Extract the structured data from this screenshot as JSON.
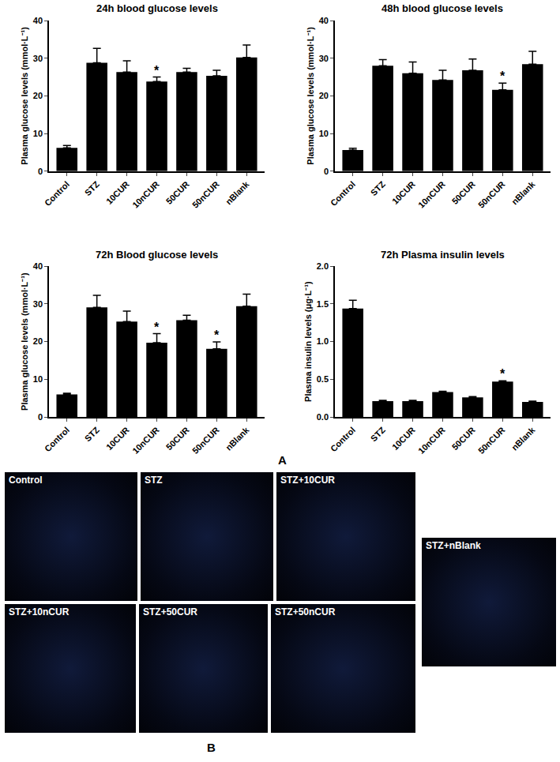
{
  "chart_data": [
    {
      "type": "bar",
      "title": "24h blood glucose levels",
      "y_label": "Plasma glucose levels (mmol·L⁻¹)",
      "categories": [
        "Control",
        "STZ",
        "10CUR",
        "10nCUR",
        "50CUR",
        "50nCUR",
        "nBlank"
      ],
      "values": [
        6.2,
        28.8,
        26.3,
        23.8,
        26.3,
        25.3,
        30.2
      ],
      "errors": [
        0.6,
        3.8,
        3.0,
        1.2,
        1.0,
        1.5,
        3.3
      ],
      "color": "#000000",
      "ylim": [
        0,
        40
      ],
      "yticks": [
        0,
        10,
        20,
        30,
        40
      ],
      "grid": false,
      "annotations": [
        {
          "x": "10nCUR",
          "text": "*"
        }
      ]
    },
    {
      "type": "bar",
      "title": "48h blood glucose levels",
      "y_label": "Plasma glucose levels (mmol·L⁻¹)",
      "categories": [
        "Control",
        "STZ",
        "10CUR",
        "10nCUR",
        "50CUR",
        "50nCUR",
        "nBlank"
      ],
      "values": [
        5.6,
        28.0,
        26.0,
        24.2,
        26.8,
        21.6,
        28.4
      ],
      "errors": [
        0.5,
        1.6,
        3.0,
        2.6,
        3.0,
        1.8,
        3.4
      ],
      "color": "#000000",
      "ylim": [
        0,
        40
      ],
      "yticks": [
        0,
        10,
        20,
        30,
        40
      ],
      "grid": false,
      "annotations": [
        {
          "x": "50nCUR",
          "text": "*"
        }
      ]
    },
    {
      "type": "bar",
      "title": "72h Blood glucose levels",
      "y_label": "Plasma glucose levels (mmol·L⁻¹)",
      "categories": [
        "Control",
        "STZ",
        "10CUR",
        "10nCUR",
        "50CUR",
        "50nCUR",
        "nBlank"
      ],
      "values": [
        6.0,
        29.1,
        25.3,
        19.7,
        25.7,
        18.1,
        29.4
      ],
      "errors": [
        0.3,
        3.2,
        2.8,
        2.4,
        1.3,
        1.8,
        3.2
      ],
      "color": "#000000",
      "ylim": [
        0,
        40
      ],
      "yticks": [
        0,
        10,
        20,
        30,
        40
      ],
      "grid": false,
      "annotations": [
        {
          "x": "10nCUR",
          "text": "*"
        },
        {
          "x": "50nCUR",
          "text": "*"
        }
      ]
    },
    {
      "type": "bar",
      "title": "72h Plasma insulin levels",
      "y_label": "Plasma insulin levels (μg·L⁻¹)",
      "categories": [
        "Control",
        "STZ",
        "10CUR",
        "10nCUR",
        "50CUR",
        "50nCUR",
        "nBlank"
      ],
      "values": [
        1.44,
        0.21,
        0.21,
        0.33,
        0.26,
        0.47,
        0.2
      ],
      "errors": [
        0.11,
        0.01,
        0.01,
        0.01,
        0.01,
        0.01,
        0.01
      ],
      "color": "#000000",
      "ylim": [
        0,
        2
      ],
      "yticks": [
        {
          "value": 0,
          "label": "0.0"
        },
        {
          "value": 0.5,
          "label": "0.5"
        },
        {
          "value": 1,
          "label": "1.0"
        },
        {
          "value": 1.5,
          "label": "1.5"
        },
        {
          "value": 2,
          "label": "2.0"
        }
      ],
      "grid": false,
      "annotations": [
        {
          "x": "50nCUR",
          "text": "*"
        }
      ]
    }
  ],
  "figure": {
    "panel_a_label": "A",
    "panel_b_label": "B",
    "micrographs": [
      "Control",
      "STZ",
      "STZ+10CUR",
      "STZ+10nCUR",
      "STZ+50CUR",
      "STZ+50nCUR",
      "STZ+nBlank"
    ]
  }
}
